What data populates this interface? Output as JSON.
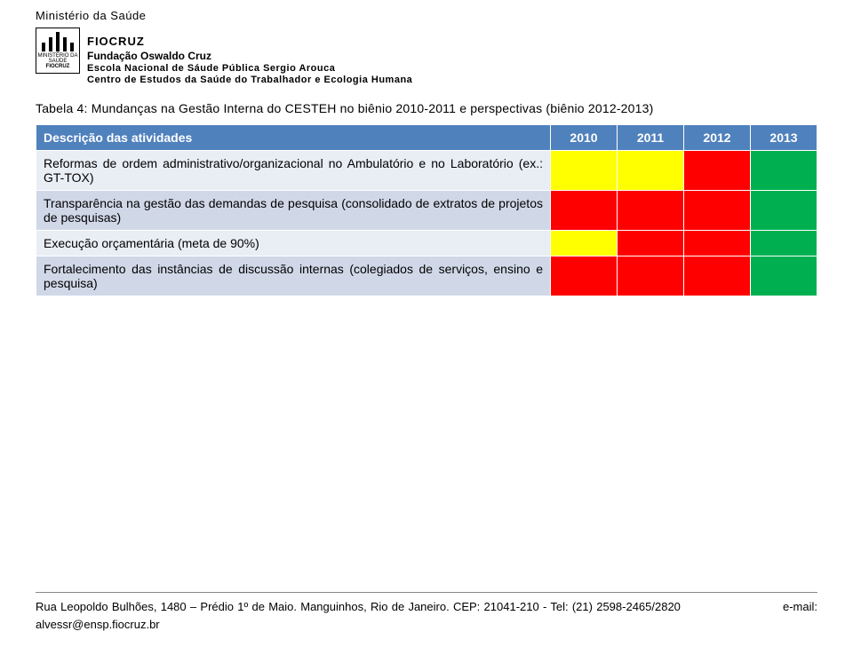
{
  "header": {
    "ministry": "Ministério da Saúde",
    "fiocruz": "FIOCRUZ",
    "fundacao": "Fundação Oswaldo Cruz",
    "line1": "Escola Nacional de Sáude Pública Sergio Arouca",
    "line2": "Centro de Estudos da Saúde do Trabalhador e Ecologia Humana"
  },
  "caption": "Tabela 4: Mundanças na Gestão Interna do CESTEH no biênio 2010-2011 e perspectivas (biênio 2012-2013)",
  "table": {
    "header_desc": "Descrição das atividades",
    "years": [
      "2010",
      "2011",
      "2012",
      "2013"
    ],
    "colors": {
      "header_bg": "#4f81bd",
      "header_fg": "#ffffff",
      "row_bg_odd": "#e9edf4",
      "row_bg_even": "#d0d8e8",
      "yellow": "#ffff00",
      "red": "#ff0000",
      "green": "#00b050"
    },
    "rows": [
      {
        "desc": "Reformas de ordem administrativo/organizacional no Ambulatório e no Laboratório (ex.: GT-TOX)",
        "cells": [
          "yellow",
          "yellow",
          "red",
          "green"
        ]
      },
      {
        "desc": "Transparência na gestão das demandas de pesquisa (consolidado de extratos de projetos de pesquisas)",
        "cells": [
          "red",
          "red",
          "red",
          "green"
        ]
      },
      {
        "desc": "Execução orçamentária (meta de 90%)",
        "cells": [
          "yellow",
          "red",
          "red",
          "green"
        ]
      },
      {
        "desc": "Fortalecimento das instâncias de discussão internas (colegiados de serviços, ensino e pesquisa)",
        "cells": [
          "red",
          "red",
          "red",
          "green"
        ]
      }
    ]
  },
  "footer": "Rua Leopoldo Bulhões, 1480 – Prédio 1º de Maio. Manguinhos, Rio de Janeiro. CEP: 21041-210 - Tel: (21) 2598-2465/2820                           e-mail: alvessr@ensp.fiocruz.br"
}
